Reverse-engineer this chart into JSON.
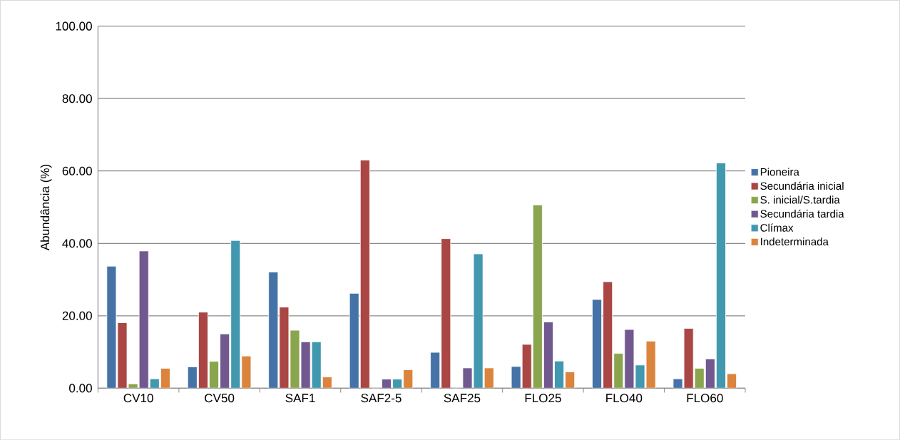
{
  "chart_data": {
    "type": "bar",
    "ylabel": "Abundância (%)",
    "categories": [
      "CV10",
      "CV50",
      "SAF1",
      "SAF2-5",
      "SAF25",
      "FLO25",
      "FLO40",
      "FLO60"
    ],
    "series": [
      {
        "name": "Pioneira",
        "color": "#4572a7",
        "values": [
          33.7,
          5.9,
          32.1,
          26.2,
          9.9,
          6.0,
          24.5,
          2.6
        ]
      },
      {
        "name": "Secundária inicial",
        "color": "#aa4643",
        "values": [
          18.1,
          21.0,
          22.4,
          63.0,
          41.3,
          12.1,
          29.4,
          16.5
        ]
      },
      {
        "name": "S. inicial/S.tardia",
        "color": "#89a54e",
        "values": [
          1.2,
          7.4,
          16.0,
          0,
          0,
          50.6,
          9.6,
          5.5
        ]
      },
      {
        "name": "Secundária tardia",
        "color": "#71588f",
        "values": [
          37.9,
          15.0,
          12.8,
          2.5,
          5.6,
          18.3,
          16.2,
          8.1
        ]
      },
      {
        "name": "Clímax",
        "color": "#4198af",
        "values": [
          2.6,
          40.8,
          12.8,
          2.5,
          37.1,
          7.5,
          6.4,
          62.2
        ]
      },
      {
        "name": "Indeterminada",
        "color": "#db843d",
        "values": [
          5.5,
          8.9,
          3.1,
          5.1,
          5.6,
          4.5,
          13.0,
          4.0
        ]
      }
    ],
    "ylim": [
      0,
      100
    ],
    "yticks": [
      {
        "value": 0,
        "label": "0.00"
      },
      {
        "value": 20,
        "label": "20.00"
      },
      {
        "value": 40,
        "label": "40.00"
      },
      {
        "value": 60,
        "label": "60.00"
      },
      {
        "value": 80,
        "label": "80.00"
      },
      {
        "value": 100,
        "label": "100.00"
      }
    ],
    "grid": "y",
    "legend": "right"
  }
}
